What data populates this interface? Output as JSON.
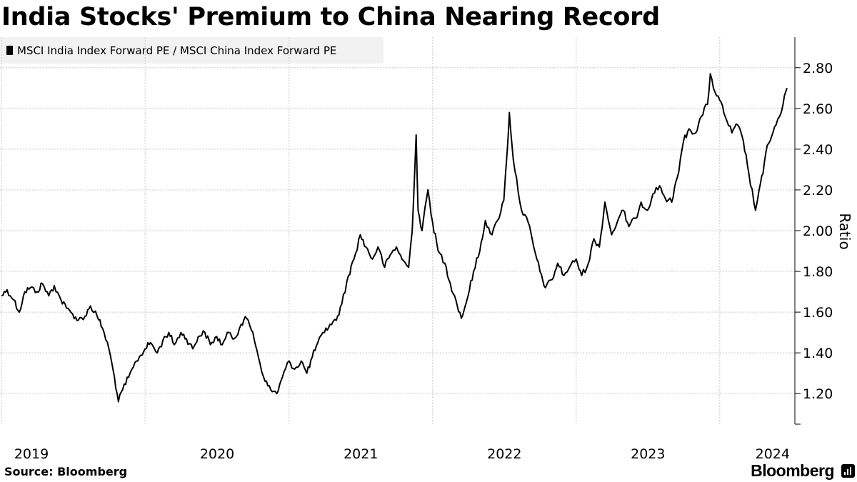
{
  "title": "India Stocks' Premium to China Nearing Record",
  "source": "Source: Bloomberg",
  "brand": "Bloomberg",
  "brand_icon": "bar-chart-icon",
  "colors": {
    "line": "#000000",
    "grid": "#c8c8c8",
    "legend_bg": "#f2f2f2",
    "background": "#ffffff"
  },
  "chart_data": {
    "type": "line",
    "title": "India Stocks' Premium to China Nearing Record",
    "series": [
      {
        "name": "MSCI India Index Forward PE / MSCI China Index Forward PE",
        "points": [
          [
            "2019-01-01",
            1.68
          ],
          [
            "2019-01-15",
            1.71
          ],
          [
            "2019-02-01",
            1.66
          ],
          [
            "2019-02-15",
            1.6
          ],
          [
            "2019-03-01",
            1.7
          ],
          [
            "2019-03-15",
            1.72
          ],
          [
            "2019-04-01",
            1.7
          ],
          [
            "2019-04-15",
            1.74
          ],
          [
            "2019-05-01",
            1.68
          ],
          [
            "2019-05-15",
            1.73
          ],
          [
            "2019-06-01",
            1.66
          ],
          [
            "2019-06-15",
            1.62
          ],
          [
            "2019-07-01",
            1.59
          ],
          [
            "2019-07-15",
            1.56
          ],
          [
            "2019-08-01",
            1.58
          ],
          [
            "2019-08-15",
            1.63
          ],
          [
            "2019-09-01",
            1.58
          ],
          [
            "2019-09-15",
            1.52
          ],
          [
            "2019-10-01",
            1.42
          ],
          [
            "2019-10-15",
            1.28
          ],
          [
            "2019-10-25",
            1.16
          ],
          [
            "2019-11-05",
            1.22
          ],
          [
            "2019-11-20",
            1.28
          ],
          [
            "2019-12-10",
            1.36
          ],
          [
            "2020-01-01",
            1.42
          ],
          [
            "2020-01-15",
            1.45
          ],
          [
            "2020-02-01",
            1.4
          ],
          [
            "2020-02-15",
            1.46
          ],
          [
            "2020-03-01",
            1.5
          ],
          [
            "2020-03-15",
            1.44
          ],
          [
            "2020-04-01",
            1.5
          ],
          [
            "2020-04-15",
            1.47
          ],
          [
            "2020-05-01",
            1.42
          ],
          [
            "2020-05-15",
            1.48
          ],
          [
            "2020-06-01",
            1.5
          ],
          [
            "2020-06-15",
            1.44
          ],
          [
            "2020-07-01",
            1.48
          ],
          [
            "2020-07-15",
            1.44
          ],
          [
            "2020-08-01",
            1.5
          ],
          [
            "2020-08-15",
            1.47
          ],
          [
            "2020-09-01",
            1.54
          ],
          [
            "2020-09-15",
            1.57
          ],
          [
            "2020-10-01",
            1.5
          ],
          [
            "2020-10-15",
            1.38
          ],
          [
            "2020-11-01",
            1.26
          ],
          [
            "2020-11-15",
            1.22
          ],
          [
            "2020-12-01",
            1.2
          ],
          [
            "2020-12-15",
            1.28
          ],
          [
            "2021-01-01",
            1.36
          ],
          [
            "2021-01-15",
            1.32
          ],
          [
            "2021-02-01",
            1.36
          ],
          [
            "2021-02-15",
            1.3
          ],
          [
            "2021-03-01",
            1.38
          ],
          [
            "2021-03-15",
            1.45
          ],
          [
            "2021-04-01",
            1.5
          ],
          [
            "2021-04-15",
            1.54
          ],
          [
            "2021-05-01",
            1.56
          ],
          [
            "2021-05-15",
            1.64
          ],
          [
            "2021-06-01",
            1.78
          ],
          [
            "2021-06-15",
            1.86
          ],
          [
            "2021-07-01",
            1.98
          ],
          [
            "2021-07-15",
            1.92
          ],
          [
            "2021-08-01",
            1.86
          ],
          [
            "2021-08-15",
            1.92
          ],
          [
            "2021-09-01",
            1.82
          ],
          [
            "2021-09-15",
            1.88
          ],
          [
            "2021-10-01",
            1.92
          ],
          [
            "2021-10-15",
            1.86
          ],
          [
            "2021-11-01",
            1.82
          ],
          [
            "2021-11-10",
            2.0
          ],
          [
            "2021-11-20",
            2.47
          ],
          [
            "2021-11-25",
            2.1
          ],
          [
            "2021-12-05",
            2.0
          ],
          [
            "2021-12-20",
            2.2
          ],
          [
            "2022-01-01",
            2.04
          ],
          [
            "2022-01-15",
            1.9
          ],
          [
            "2022-02-01",
            1.84
          ],
          [
            "2022-02-15",
            1.74
          ],
          [
            "2022-03-01",
            1.66
          ],
          [
            "2022-03-15",
            1.57
          ],
          [
            "2022-04-01",
            1.68
          ],
          [
            "2022-04-15",
            1.8
          ],
          [
            "2022-05-01",
            1.9
          ],
          [
            "2022-05-15",
            2.05
          ],
          [
            "2022-06-01",
            1.98
          ],
          [
            "2022-06-15",
            2.05
          ],
          [
            "2022-07-01",
            2.15
          ],
          [
            "2022-07-10",
            2.4
          ],
          [
            "2022-07-15",
            2.58
          ],
          [
            "2022-07-25",
            2.35
          ],
          [
            "2022-08-15",
            2.1
          ],
          [
            "2022-09-01",
            2.04
          ],
          [
            "2022-09-15",
            1.92
          ],
          [
            "2022-10-01",
            1.8
          ],
          [
            "2022-10-15",
            1.72
          ],
          [
            "2022-11-01",
            1.76
          ],
          [
            "2022-11-15",
            1.84
          ],
          [
            "2022-12-01",
            1.78
          ],
          [
            "2022-12-15",
            1.82
          ],
          [
            "2023-01-01",
            1.86
          ],
          [
            "2023-01-15",
            1.78
          ],
          [
            "2023-02-01",
            1.84
          ],
          [
            "2023-02-15",
            1.96
          ],
          [
            "2023-03-01",
            1.92
          ],
          [
            "2023-03-15",
            2.14
          ],
          [
            "2023-04-01",
            1.98
          ],
          [
            "2023-04-15",
            2.04
          ],
          [
            "2023-05-01",
            2.1
          ],
          [
            "2023-05-15",
            2.02
          ],
          [
            "2023-06-01",
            2.06
          ],
          [
            "2023-06-15",
            2.14
          ],
          [
            "2023-07-01",
            2.1
          ],
          [
            "2023-07-15",
            2.18
          ],
          [
            "2023-08-01",
            2.22
          ],
          [
            "2023-08-15",
            2.16
          ],
          [
            "2023-09-01",
            2.14
          ],
          [
            "2023-09-15",
            2.26
          ],
          [
            "2023-10-01",
            2.44
          ],
          [
            "2023-10-15",
            2.5
          ],
          [
            "2023-11-01",
            2.48
          ],
          [
            "2023-11-15",
            2.56
          ],
          [
            "2023-12-01",
            2.62
          ],
          [
            "2023-12-08",
            2.77
          ],
          [
            "2023-12-20",
            2.68
          ],
          [
            "2024-01-01",
            2.64
          ],
          [
            "2024-01-15",
            2.56
          ],
          [
            "2024-02-01",
            2.48
          ],
          [
            "2024-02-15",
            2.52
          ],
          [
            "2024-03-01",
            2.44
          ],
          [
            "2024-03-15",
            2.28
          ],
          [
            "2024-04-01",
            2.1
          ],
          [
            "2024-04-10",
            2.2
          ],
          [
            "2024-04-20",
            2.28
          ],
          [
            "2024-05-01",
            2.42
          ],
          [
            "2024-05-15",
            2.48
          ],
          [
            "2024-06-01",
            2.56
          ],
          [
            "2024-06-10",
            2.62
          ],
          [
            "2024-06-20",
            2.7
          ]
        ]
      }
    ],
    "xlabel": "",
    "ylabel": "Ratio",
    "ylim": [
      1.05,
      2.95
    ],
    "y_ticks": [
      1.2,
      1.4,
      1.6,
      1.8,
      2.0,
      2.2,
      2.4,
      2.6,
      2.8
    ],
    "y_tick_labels": [
      "1.20",
      "1.40",
      "1.60",
      "1.80",
      "2.00",
      "2.20",
      "2.40",
      "2.60",
      "2.80"
    ],
    "xlim": [
      "2018-12-28",
      "2024-07-10"
    ],
    "x_ticks": [
      "2019-01-01",
      "2020-01-01",
      "2021-01-01",
      "2022-01-01",
      "2023-01-01",
      "2024-01-01"
    ],
    "x_tick_labels": [
      "2019",
      "2020",
      "2021",
      "2022",
      "2023",
      "2024"
    ],
    "y_axis_side": "right",
    "grid": true,
    "legend_position": "top-left"
  }
}
